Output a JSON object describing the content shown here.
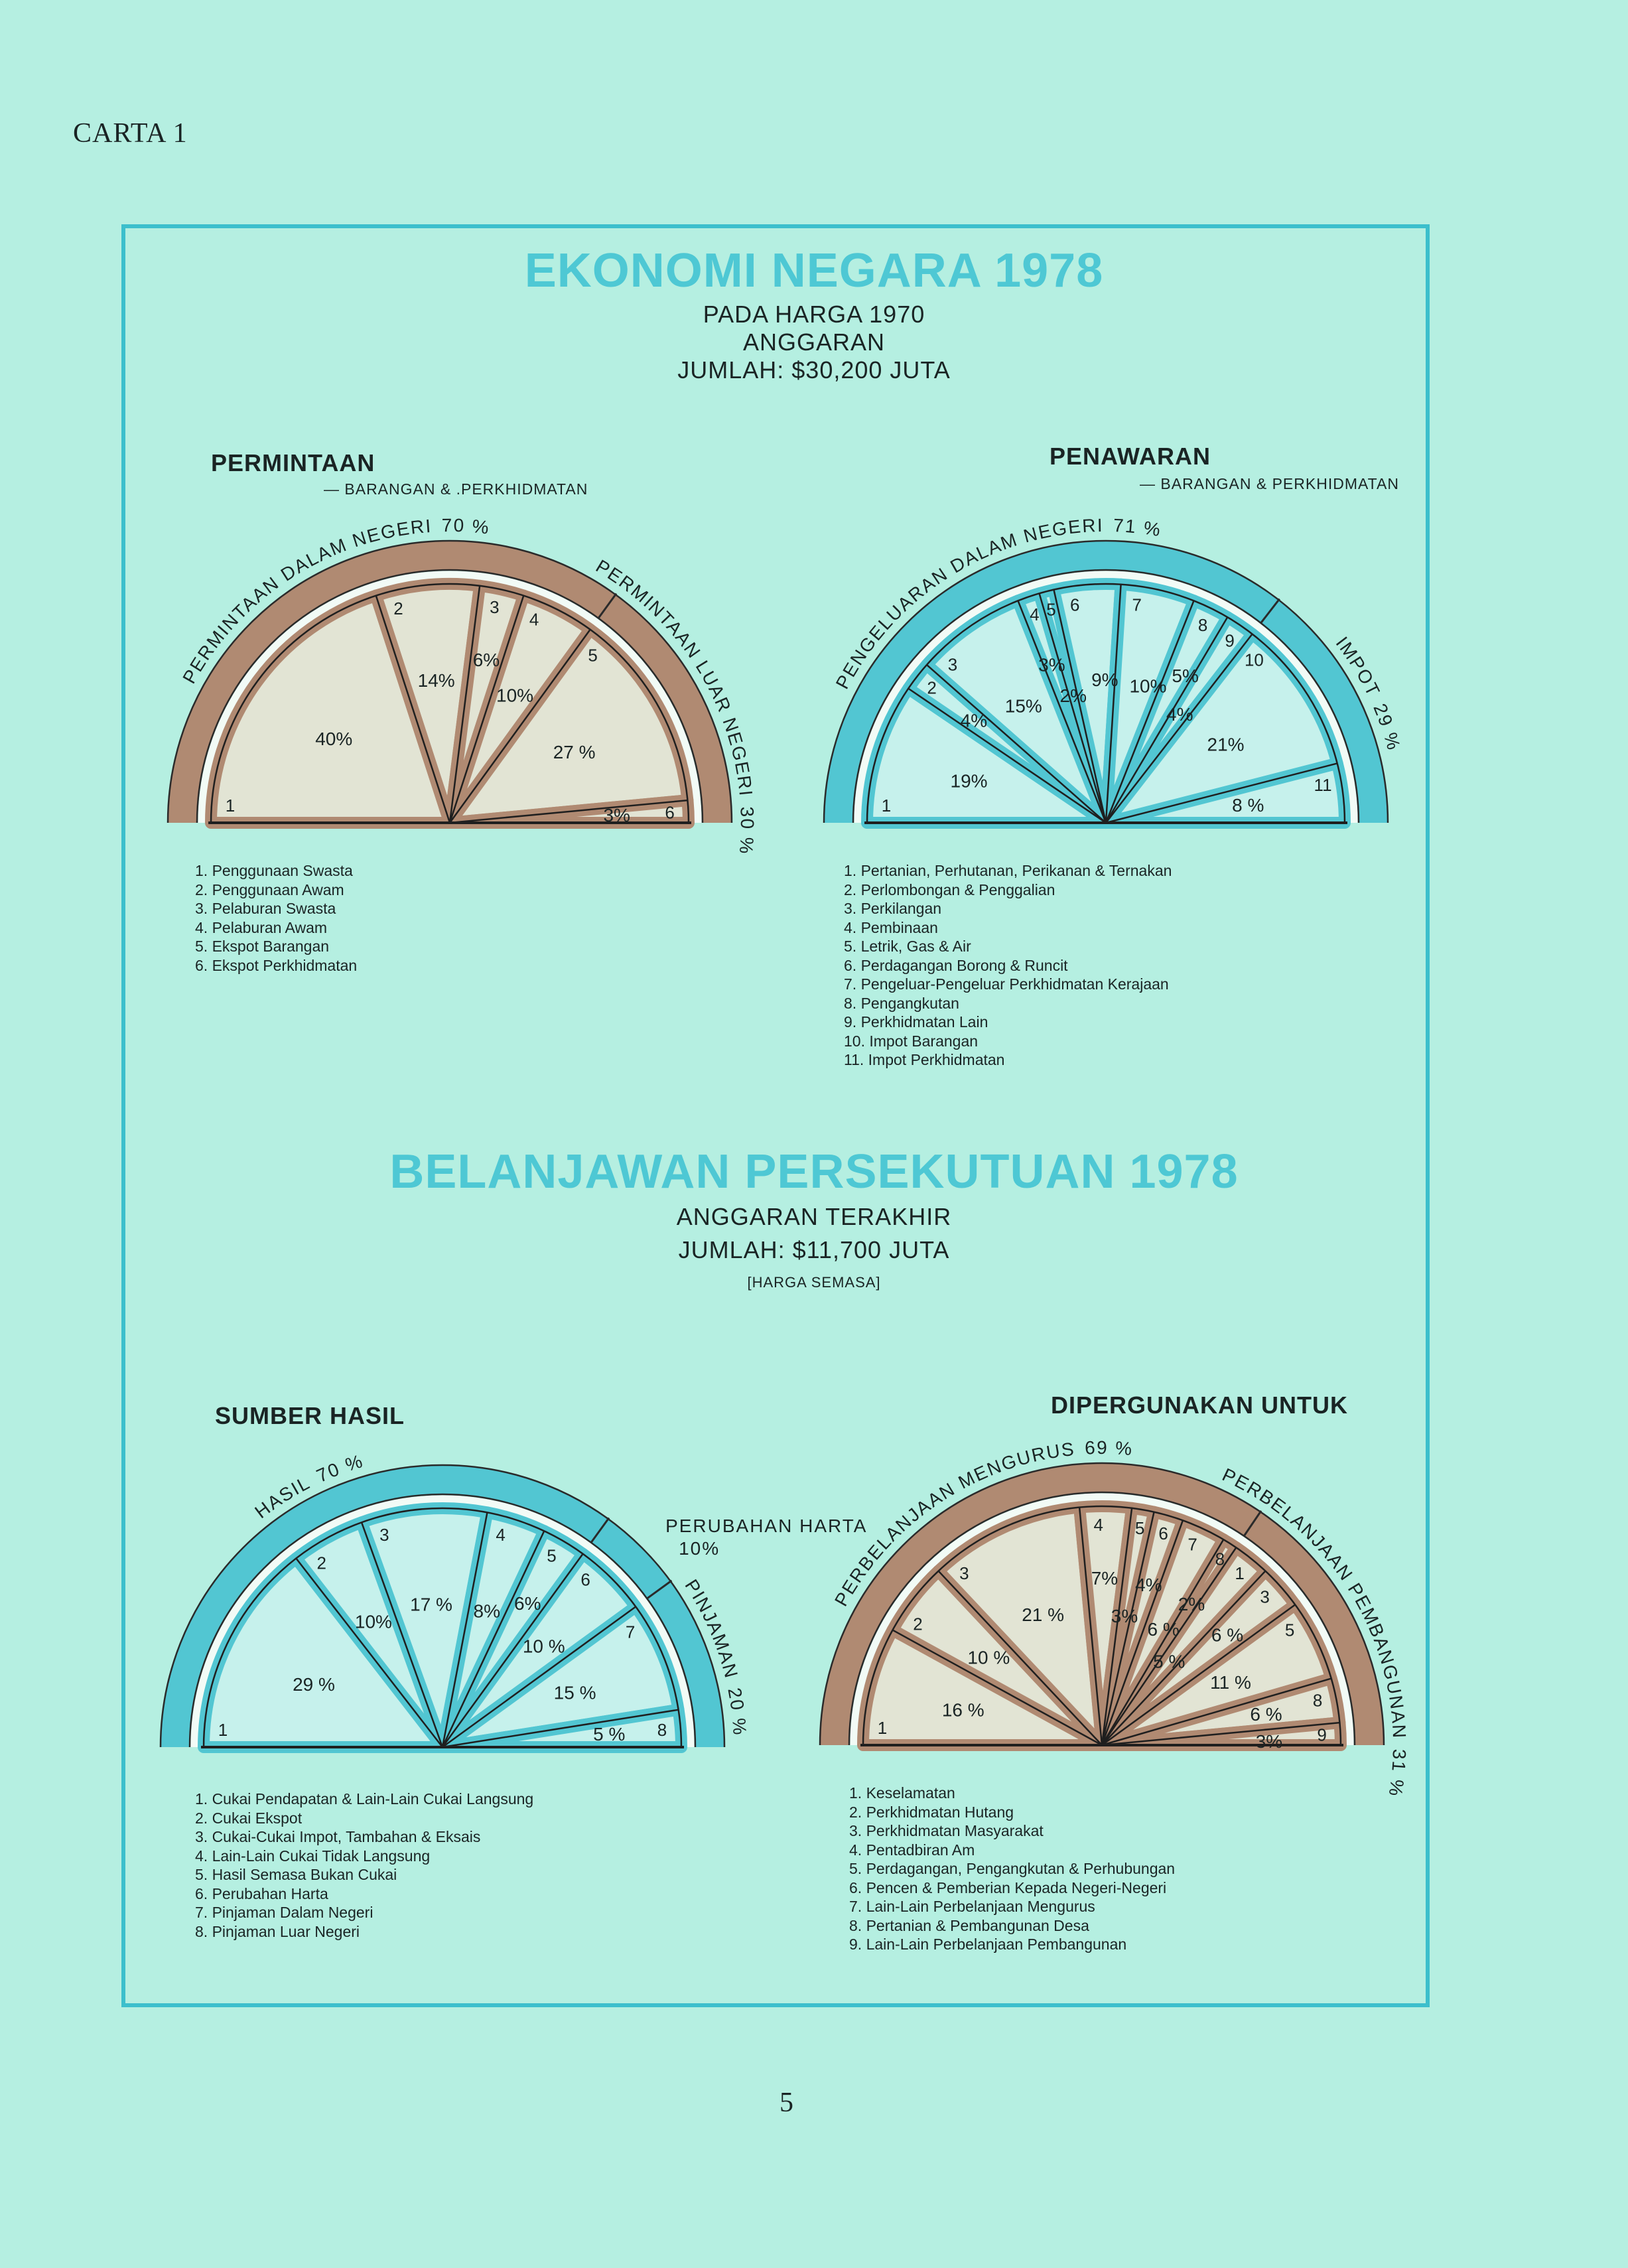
{
  "page": {
    "label": "CARTA 1",
    "page_number": "5"
  },
  "colors": {
    "background": "#b5efe1",
    "frame": "#3cbfcc",
    "title": "#4ec8d4",
    "brown_ring": "#b08a72",
    "brown_fill": "#e2e4d4",
    "blue_ring": "#52c6d2",
    "blue_fill": "#c6f1ec"
  },
  "section1": {
    "title": "EKONOMI NEGARA 1978",
    "line1": "PADA HARGA 1970",
    "line2": "ANGGARAN",
    "line3": "JUMLAH: $30,200 JUTA"
  },
  "section2": {
    "title": "BELANJAWAN PERSEKUTUAN 1978",
    "line1": "ANGGARAN TERAKHIR",
    "line2": "JUMLAH: $11,700 JUTA",
    "line3": "[HARGA SEMASA]"
  },
  "chart_data": [
    {
      "type": "pie",
      "shape": "semicircle",
      "title": "PERMINTAAN",
      "subtitle": "— BARANGAN & .PERKHIDMATAN",
      "ring_color": "#b08a72",
      "fill_color": "#e2e4d4",
      "groups": [
        {
          "label": "PERMINTAAN DALAM NEGERI",
          "percent_label": "70 %",
          "value": 70,
          "slices": [
            {
              "n": "1",
              "value": 40,
              "label": "40%"
            },
            {
              "n": "2",
              "value": 14,
              "label": "14%"
            },
            {
              "n": "3",
              "value": 6,
              "label": "6%"
            },
            {
              "n": "4",
              "value": 10,
              "label": "10%"
            }
          ]
        },
        {
          "label": "PERMINTAAN LUAR NEGERI",
          "percent_label": "30 %",
          "value": 30,
          "slices": [
            {
              "n": "5",
              "value": 27,
              "label": "27 %"
            },
            {
              "n": "6",
              "value": 3,
              "label": "3%"
            }
          ]
        }
      ],
      "legend": [
        "1. Penggunaan Swasta",
        "2. Penggunaan Awam",
        "3. Pelaburan Swasta",
        "4. Pelaburan Awam",
        "5. Ekspot Barangan",
        "6. Ekspot Perkhidmatan"
      ]
    },
    {
      "type": "pie",
      "shape": "semicircle",
      "title": "PENAWARAN",
      "subtitle": "— BARANGAN & PERKHIDMATAN",
      "ring_color": "#52c6d2",
      "fill_color": "#c6f1ec",
      "groups": [
        {
          "label": "PENGELUARAN DALAM NEGERI",
          "percent_label": "71 %",
          "value": 71,
          "slices": [
            {
              "n": "1",
              "value": 19,
              "label": "19%"
            },
            {
              "n": "2",
              "value": 4,
              "label": "4%"
            },
            {
              "n": "3",
              "value": 15,
              "label": "15%"
            },
            {
              "n": "4",
              "value": 3,
              "label": "3%"
            },
            {
              "n": "5",
              "value": 2,
              "label": "2%"
            },
            {
              "n": "6",
              "value": 9,
              "label": "9%"
            },
            {
              "n": "7",
              "value": 10,
              "label": "10%"
            },
            {
              "n": "8",
              "value": 5,
              "label": "5%"
            },
            {
              "n": "9",
              "value": 4,
              "label": "4%"
            }
          ]
        },
        {
          "label": "IMPOT",
          "percent_label": "29 %",
          "value": 29,
          "slices": [
            {
              "n": "10",
              "value": 21,
              "label": "21%"
            },
            {
              "n": "11",
              "value": 8,
              "label": "8 %"
            }
          ]
        }
      ],
      "legend": [
        "1. Pertanian, Perhutanan, Perikanan & Ternakan",
        "2. Perlombongan & Penggalian",
        "3. Perkilangan",
        "4. Pembinaan",
        "5. Letrik, Gas & Air",
        "6. Perdagangan Borong & Runcit",
        "7. Pengeluar-Pengeluar Perkhidmatan Kerajaan",
        "8. Pengangkutan",
        "9. Perkhidmatan Lain",
        "10. Impot Barangan",
        "11. Impot Perkhidmatan"
      ]
    },
    {
      "type": "pie",
      "shape": "semicircle",
      "title": "SUMBER HASIL",
      "subtitle": "",
      "ring_color": "#52c6d2",
      "fill_color": "#c6f1ec",
      "groups": [
        {
          "label": "HASIL",
          "percent_label": "70 %",
          "value": 70,
          "slices": [
            {
              "n": "1",
              "value": 29,
              "label": "29 %"
            },
            {
              "n": "2",
              "value": 10,
              "label": "10%"
            },
            {
              "n": "3",
              "value": 17,
              "label": "17 %"
            },
            {
              "n": "4",
              "value": 8,
              "label": "8%"
            },
            {
              "n": "5",
              "value": 6,
              "label": "6%"
            }
          ]
        },
        {
          "label": "PERUBAHAN HARTA",
          "percent_label": "10%",
          "value": 10,
          "slices": [
            {
              "n": "6",
              "value": 10,
              "label": "10 %"
            }
          ]
        },
        {
          "label": "PINJAMAN",
          "percent_label": "20 %",
          "value": 20,
          "slices": [
            {
              "n": "7",
              "value": 15,
              "label": "15 %"
            },
            {
              "n": "8",
              "value": 5,
              "label": "5 %"
            }
          ]
        }
      ],
      "legend": [
        "1. Cukai Pendapatan & Lain-Lain Cukai Langsung",
        "2. Cukai Ekspot",
        "3. Cukai-Cukai Impot, Tambahan & Eksais",
        "4. Lain-Lain Cukai Tidak Langsung",
        "5. Hasil Semasa Bukan Cukai",
        "6. Perubahan Harta",
        "7. Pinjaman Dalam Negeri",
        "8. Pinjaman Luar Negeri"
      ]
    },
    {
      "type": "pie",
      "shape": "semicircle",
      "title": "DIPERGUNAKAN UNTUK",
      "subtitle": "",
      "ring_color": "#b08a72",
      "fill_color": "#e2e4d4",
      "groups": [
        {
          "label": "PERBELANJAAN MENGURUS",
          "percent_label": "69 %",
          "value": 69,
          "slices": [
            {
              "n": "1",
              "value": 16,
              "label": "16 %"
            },
            {
              "n": "2",
              "value": 10,
              "label": "10 %"
            },
            {
              "n": "3",
              "value": 21,
              "label": "21 %"
            },
            {
              "n": "4",
              "value": 7,
              "label": "7%"
            },
            {
              "n": "5",
              "value": 3,
              "label": "3%"
            },
            {
              "n": "6",
              "value": 4,
              "label": "4%"
            },
            {
              "n": "7",
              "value": 6,
              "label": "6 %"
            },
            {
              "n": "8",
              "value": 2,
              "label": "2%"
            }
          ]
        },
        {
          "label": "PERBELANJAAN PEMBANGUNAN",
          "percent_label": "31 %",
          "value": 31,
          "slices": [
            {
              "n": "1",
              "value": 5,
              "label": "5 %"
            },
            {
              "n": "3",
              "value": 6,
              "label": "6 %"
            },
            {
              "n": "5",
              "value": 11,
              "label": "11 %"
            },
            {
              "n": "8",
              "value": 6,
              "label": "6 %"
            },
            {
              "n": "9",
              "value": 3,
              "label": "3%"
            }
          ]
        }
      ],
      "legend": [
        "1. Keselamatan",
        "2. Perkhidmatan Hutang",
        "3. Perkhidmatan Masyarakat",
        "4. Pentadbiran Am",
        "5. Perdagangan, Pengangkutan & Perhubungan",
        "6. Pencen & Pemberian Kepada Negeri-Negeri",
        "7. Lain-Lain Perbelanjaan Mengurus",
        "8. Pertanian & Pembangunan Desa",
        "9. Lain-Lain Perbelanjaan Pembangunan"
      ]
    }
  ]
}
